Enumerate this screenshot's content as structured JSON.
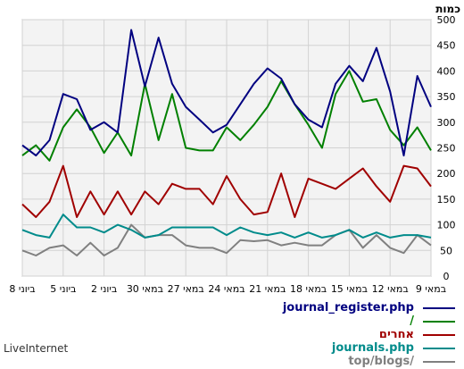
{
  "footer": {
    "brand": "LiveInternet"
  },
  "chart_data": {
    "type": "line",
    "title": "",
    "ylabel": "כמות",
    "ylim": [
      0,
      500
    ],
    "yticks": [
      0,
      50,
      100,
      150,
      200,
      250,
      300,
      350,
      400,
      450,
      500
    ],
    "grid": true,
    "legend_position": "bottom-right",
    "x_ticks": [
      {
        "index": 0,
        "label": "9 במאי"
      },
      {
        "index": 3,
        "label": "12 במאי"
      },
      {
        "index": 6,
        "label": "15 במאי"
      },
      {
        "index": 9,
        "label": "18 במאי"
      },
      {
        "index": 12,
        "label": "21 במאי"
      },
      {
        "index": 15,
        "label": "24 במאי"
      },
      {
        "index": 18,
        "label": "27 במאי"
      },
      {
        "index": 21,
        "label": "30 במאי"
      },
      {
        "index": 24,
        "label": "2 ביוני"
      },
      {
        "index": 27,
        "label": "5 ביוני"
      },
      {
        "index": 30,
        "label": "8 ביוני"
      }
    ],
    "series": [
      {
        "name": "journal_register.php",
        "color": "#000080",
        "values": [
          330,
          390,
          235,
          360,
          445,
          380,
          410,
          375,
          290,
          305,
          335,
          385,
          405,
          375,
          335,
          295,
          280,
          305,
          330,
          375,
          465,
          370,
          480,
          280,
          300,
          285,
          345,
          355,
          265,
          235,
          255
        ]
      },
      {
        "name": "/",
        "color": "#008000",
        "values": [
          245,
          290,
          255,
          285,
          345,
          340,
          400,
          355,
          250,
          295,
          335,
          380,
          330,
          295,
          265,
          290,
          245,
          245,
          250,
          355,
          265,
          375,
          235,
          280,
          240,
          290,
          325,
          290,
          225,
          255,
          235
        ]
      },
      {
        "name": "אחרים",
        "color": "#a00000",
        "values": [
          175,
          210,
          215,
          145,
          175,
          210,
          190,
          170,
          180,
          190,
          115,
          200,
          125,
          120,
          150,
          195,
          140,
          170,
          170,
          180,
          140,
          165,
          120,
          165,
          120,
          165,
          115,
          215,
          145,
          115,
          140
        ]
      },
      {
        "name": "journals.php",
        "color": "#008b8b",
        "values": [
          75,
          80,
          80,
          75,
          85,
          75,
          90,
          80,
          75,
          85,
          75,
          85,
          80,
          85,
          95,
          80,
          95,
          95,
          95,
          95,
          80,
          75,
          90,
          100,
          85,
          95,
          95,
          120,
          75,
          80,
          90
        ]
      },
      {
        "name": "top/blogs/",
        "color": "#808080",
        "values": [
          60,
          80,
          45,
          55,
          80,
          55,
          90,
          80,
          60,
          60,
          65,
          60,
          70,
          68,
          70,
          45,
          55,
          55,
          60,
          80,
          80,
          75,
          100,
          55,
          40,
          65,
          40,
          60,
          55,
          40,
          50
        ]
      }
    ]
  }
}
